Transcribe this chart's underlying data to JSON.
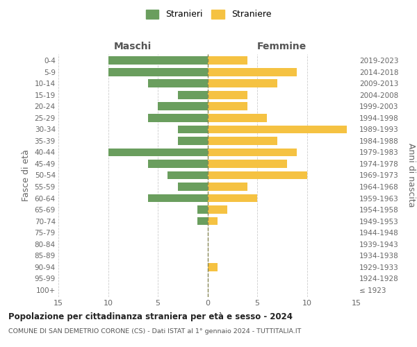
{
  "age_groups": [
    "100+",
    "95-99",
    "90-94",
    "85-89",
    "80-84",
    "75-79",
    "70-74",
    "65-69",
    "60-64",
    "55-59",
    "50-54",
    "45-49",
    "40-44",
    "35-39",
    "30-34",
    "25-29",
    "20-24",
    "15-19",
    "10-14",
    "5-9",
    "0-4"
  ],
  "birth_years": [
    "≤ 1923",
    "1924-1928",
    "1929-1933",
    "1934-1938",
    "1939-1943",
    "1944-1948",
    "1949-1953",
    "1954-1958",
    "1959-1963",
    "1964-1968",
    "1969-1973",
    "1974-1978",
    "1979-1983",
    "1984-1988",
    "1989-1993",
    "1994-1998",
    "1999-2003",
    "2004-2008",
    "2009-2013",
    "2014-2018",
    "2019-2023"
  ],
  "maschi": [
    0,
    0,
    0,
    0,
    0,
    0,
    1,
    1,
    6,
    3,
    4,
    6,
    10,
    3,
    3,
    6,
    5,
    3,
    6,
    10,
    10
  ],
  "femmine": [
    0,
    0,
    1,
    0,
    0,
    0,
    1,
    2,
    5,
    4,
    10,
    8,
    9,
    7,
    14,
    6,
    4,
    4,
    7,
    9,
    4
  ],
  "maschi_color": "#6a9e5e",
  "femmine_color": "#f5c242",
  "dashed_line_color": "#888855",
  "grid_color": "#cccccc",
  "title": "Popolazione per cittadinanza straniera per età e sesso - 2024",
  "subtitle": "COMUNE DI SAN DEMETRIO CORONE (CS) - Dati ISTAT al 1° gennaio 2024 - TUTTITALIA.IT",
  "xlabel_left": "Maschi",
  "xlabel_right": "Femmine",
  "ylabel_left": "Fasce di età",
  "ylabel_right": "Anni di nascita",
  "legend_maschi": "Stranieri",
  "legend_femmine": "Straniere",
  "xlim": 15
}
